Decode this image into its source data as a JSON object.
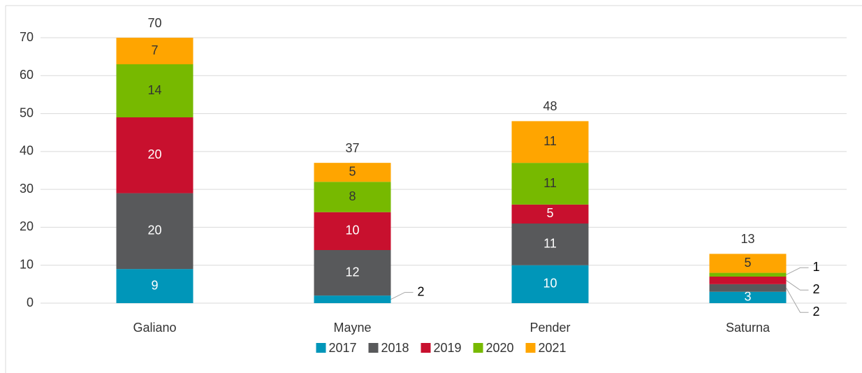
{
  "chart_data": {
    "type": "stacked_bar",
    "categories": [
      "Galiano",
      "Mayne",
      "Pender",
      "Saturna"
    ],
    "series": [
      {
        "name": "2017",
        "color": "#0096b9",
        "values": [
          9,
          2,
          10,
          3
        ]
      },
      {
        "name": "2018",
        "color": "#58595b",
        "values": [
          20,
          12,
          11,
          2
        ]
      },
      {
        "name": "2019",
        "color": "#c8102e",
        "values": [
          20,
          10,
          5,
          2
        ]
      },
      {
        "name": "2020",
        "color": "#77b900",
        "values": [
          14,
          8,
          11,
          1
        ]
      },
      {
        "name": "2021",
        "color": "#ffa500",
        "values": [
          7,
          5,
          11,
          5
        ]
      }
    ],
    "totals": [
      70,
      37,
      48,
      13
    ],
    "ylim": [
      0,
      70
    ],
    "yticks": [
      0,
      10,
      20,
      30,
      40,
      50,
      60,
      70
    ],
    "grid": true,
    "legend": "bottom"
  }
}
